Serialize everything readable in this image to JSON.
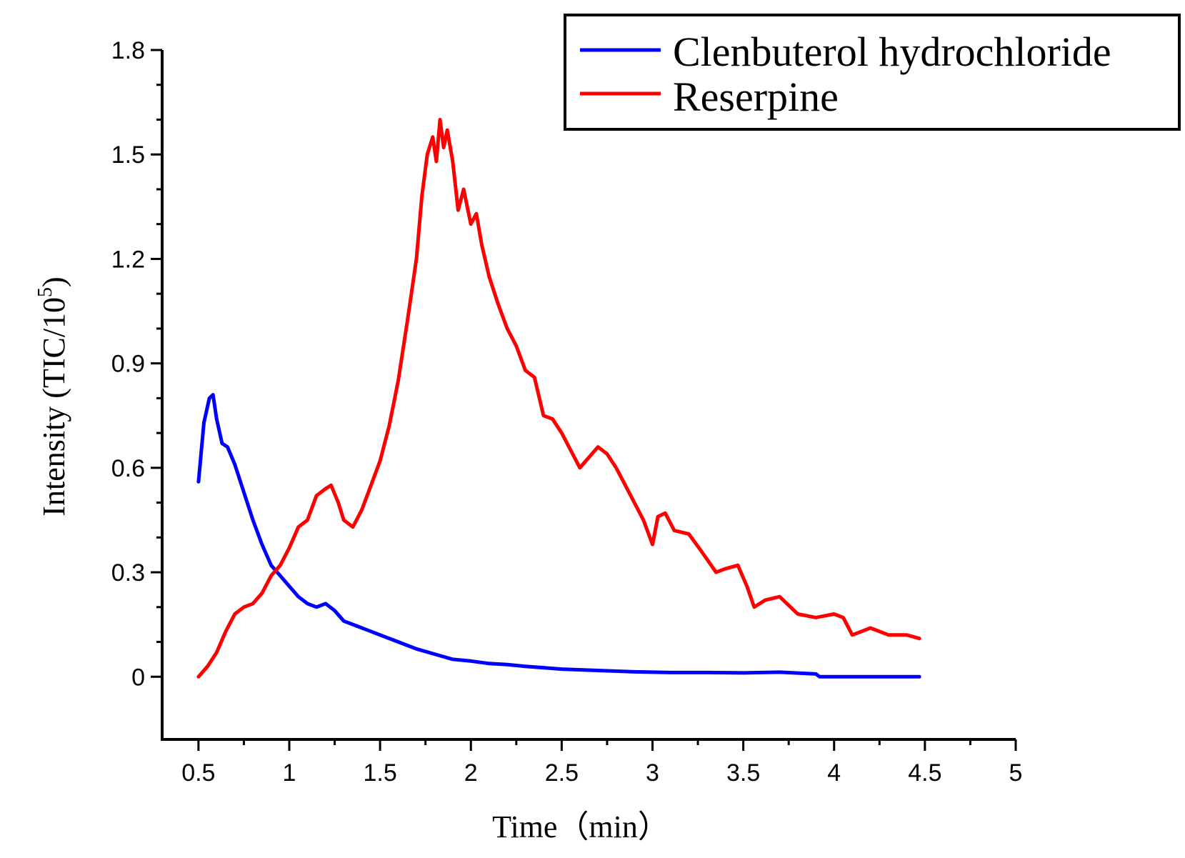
{
  "chart_data": {
    "type": "line",
    "title": "",
    "xlabel": "Time（min）",
    "ylabel": "Intensity (TIC/10",
    "ylabel_superscript": "5",
    "ylabel_suffix": ")",
    "xlim": [
      0.3,
      5.0
    ],
    "ylim": [
      -0.18,
      1.8
    ],
    "x_ticks": [
      0.5,
      1,
      1.5,
      2,
      2.5,
      3,
      3.5,
      4,
      4.5,
      5
    ],
    "x_tick_labels": [
      "0.5",
      "1",
      "1.5",
      "2",
      "2.5",
      "3",
      "3.5",
      "4",
      "4.5",
      "5"
    ],
    "y_ticks": [
      0,
      0.3,
      0.6,
      0.9,
      1.2,
      1.5,
      1.8
    ],
    "y_tick_labels": [
      "0",
      "0.3",
      "0.6",
      "0.9",
      "1.2",
      "1.5",
      "1.8"
    ],
    "grid": false,
    "legend_position": "top-right",
    "series": [
      {
        "name": "Clenbuterol hydrochloride",
        "color": "#0000ff",
        "x": [
          0.5,
          0.53,
          0.56,
          0.58,
          0.6,
          0.63,
          0.66,
          0.7,
          0.75,
          0.8,
          0.85,
          0.9,
          0.95,
          1.0,
          1.05,
          1.1,
          1.15,
          1.2,
          1.25,
          1.3,
          1.4,
          1.5,
          1.6,
          1.7,
          1.8,
          1.9,
          2.0,
          2.1,
          2.2,
          2.3,
          2.5,
          2.7,
          2.9,
          3.1,
          3.3,
          3.5,
          3.7,
          3.9,
          3.92,
          4.1,
          4.3,
          4.47
        ],
        "y": [
          0.56,
          0.73,
          0.8,
          0.81,
          0.74,
          0.67,
          0.66,
          0.61,
          0.53,
          0.45,
          0.38,
          0.32,
          0.29,
          0.26,
          0.23,
          0.21,
          0.2,
          0.21,
          0.19,
          0.16,
          0.14,
          0.12,
          0.1,
          0.08,
          0.065,
          0.05,
          0.045,
          0.038,
          0.035,
          0.03,
          0.022,
          0.018,
          0.014,
          0.012,
          0.012,
          0.011,
          0.013,
          0.008,
          0.0,
          0.0,
          0.0,
          0.0
        ]
      },
      {
        "name": "Reserpine",
        "color": "#ff0000",
        "x": [
          0.5,
          0.55,
          0.6,
          0.65,
          0.7,
          0.75,
          0.8,
          0.85,
          0.9,
          0.95,
          1.0,
          1.05,
          1.1,
          1.15,
          1.2,
          1.23,
          1.27,
          1.3,
          1.35,
          1.4,
          1.45,
          1.5,
          1.55,
          1.6,
          1.65,
          1.7,
          1.73,
          1.76,
          1.79,
          1.81,
          1.83,
          1.85,
          1.87,
          1.9,
          1.93,
          1.96,
          2.0,
          2.03,
          2.06,
          2.1,
          2.15,
          2.2,
          2.25,
          2.3,
          2.35,
          2.4,
          2.45,
          2.5,
          2.55,
          2.6,
          2.65,
          2.7,
          2.75,
          2.8,
          2.85,
          2.9,
          2.95,
          3.0,
          3.03,
          3.07,
          3.12,
          3.2,
          3.27,
          3.35,
          3.4,
          3.47,
          3.52,
          3.56,
          3.62,
          3.7,
          3.8,
          3.9,
          4.0,
          4.05,
          4.1,
          4.15,
          4.2,
          4.3,
          4.4,
          4.47
        ],
        "y": [
          0.0,
          0.03,
          0.07,
          0.13,
          0.18,
          0.2,
          0.21,
          0.24,
          0.29,
          0.32,
          0.37,
          0.43,
          0.45,
          0.52,
          0.54,
          0.55,
          0.5,
          0.45,
          0.43,
          0.48,
          0.55,
          0.62,
          0.72,
          0.85,
          1.02,
          1.2,
          1.38,
          1.5,
          1.55,
          1.48,
          1.6,
          1.52,
          1.57,
          1.48,
          1.34,
          1.4,
          1.3,
          1.33,
          1.24,
          1.15,
          1.07,
          1.0,
          0.95,
          0.88,
          0.86,
          0.75,
          0.74,
          0.7,
          0.65,
          0.6,
          0.63,
          0.66,
          0.64,
          0.6,
          0.55,
          0.5,
          0.45,
          0.38,
          0.46,
          0.47,
          0.42,
          0.41,
          0.36,
          0.3,
          0.31,
          0.32,
          0.26,
          0.2,
          0.22,
          0.23,
          0.18,
          0.17,
          0.18,
          0.17,
          0.12,
          0.13,
          0.14,
          0.12,
          0.12,
          0.11
        ]
      }
    ]
  }
}
